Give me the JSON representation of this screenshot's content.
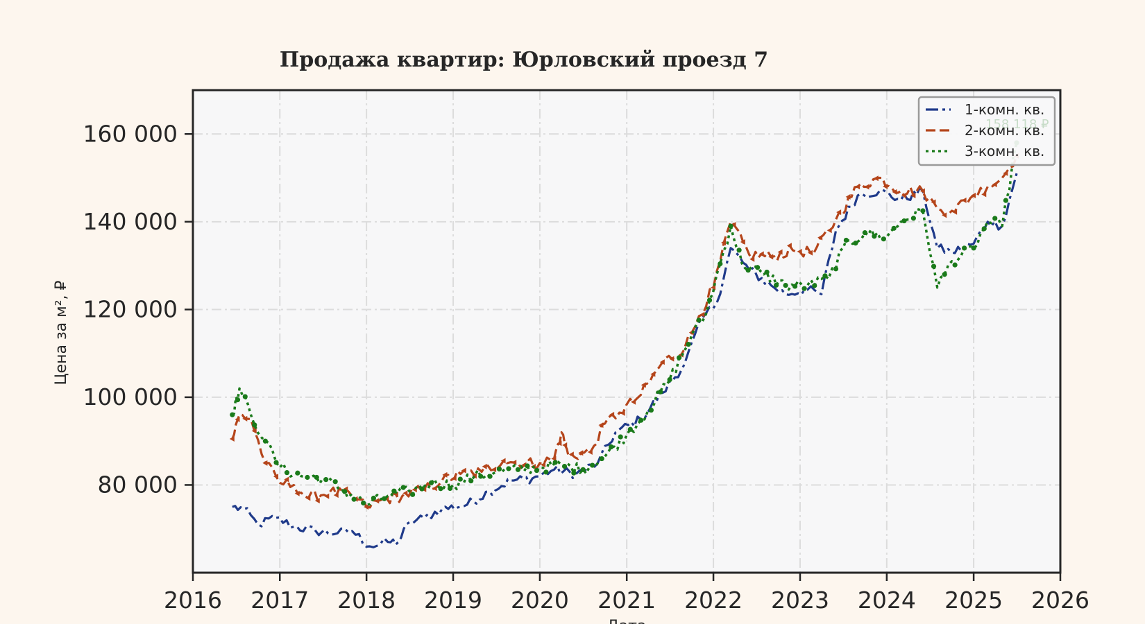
{
  "chart_data": {
    "type": "line",
    "title": "Продажа квартир: Юрловский проезд 7",
    "xlabel": "Дата",
    "ylabel": "Цена за м², ₽",
    "xlim": [
      "2016-01-01",
      "2026-01-01"
    ],
    "ylim": [
      60000,
      170000
    ],
    "x_ticks": [
      "2016",
      "2017",
      "2018",
      "2019",
      "2020",
      "2021",
      "2022",
      "2023",
      "2024",
      "2025",
      "2026"
    ],
    "y_ticks": [
      80000,
      100000,
      120000,
      140000,
      160000
    ],
    "y_tick_labels": [
      "80 000",
      "100 000",
      "120 000",
      "140 000",
      "160 000"
    ],
    "grid": true,
    "legend_position": "top-right",
    "end_labels": [
      "158 118 ₽"
    ],
    "series": [
      {
        "name": "1-комн. кв.",
        "color": "#1f3a8a",
        "style": "dashdot",
        "points": [
          [
            "2016-06-15",
            75000
          ],
          [
            "2016-08-01",
            74500
          ],
          [
            "2016-10-01",
            71000
          ],
          [
            "2016-12-15",
            72500
          ],
          [
            "2017-03-01",
            70500
          ],
          [
            "2017-06-01",
            69500
          ],
          [
            "2017-09-01",
            69000
          ],
          [
            "2017-11-01",
            69500
          ],
          [
            "2018-01-15",
            66000
          ],
          [
            "2018-04-01",
            67000
          ],
          [
            "2018-05-15",
            67000
          ],
          [
            "2018-07-01",
            71500
          ],
          [
            "2018-09-01",
            72500
          ],
          [
            "2018-11-15",
            74500
          ],
          [
            "2019-03-01",
            75500
          ],
          [
            "2019-06-01",
            78500
          ],
          [
            "2019-09-01",
            81000
          ],
          [
            "2019-12-01",
            81500
          ],
          [
            "2020-03-01",
            83500
          ],
          [
            "2020-06-01",
            82500
          ],
          [
            "2020-09-01",
            85000
          ],
          [
            "2020-11-15",
            92000
          ],
          [
            "2021-03-01",
            95000
          ],
          [
            "2021-06-01",
            101000
          ],
          [
            "2021-09-01",
            107500
          ],
          [
            "2021-11-15",
            118000
          ],
          [
            "2022-01-15",
            121500
          ],
          [
            "2022-03-15",
            134000
          ],
          [
            "2022-06-01",
            129000
          ],
          [
            "2022-09-01",
            125500
          ],
          [
            "2022-11-01",
            123500
          ],
          [
            "2023-02-01",
            124500
          ],
          [
            "2023-04-01",
            123500
          ],
          [
            "2023-06-01",
            138000
          ],
          [
            "2023-09-01",
            146000
          ],
          [
            "2023-12-01",
            147000
          ],
          [
            "2024-03-01",
            145000
          ],
          [
            "2024-06-01",
            147000
          ],
          [
            "2024-08-01",
            134000
          ],
          [
            "2024-10-01",
            133000
          ],
          [
            "2025-01-01",
            135000
          ],
          [
            "2025-03-01",
            140000
          ],
          [
            "2025-05-01",
            139000
          ],
          [
            "2025-07-01",
            151000
          ]
        ]
      },
      {
        "name": "2-комн. кв.",
        "color": "#b5451b",
        "style": "dashed",
        "points": [
          [
            "2016-06-15",
            90500
          ],
          [
            "2016-07-15",
            96000
          ],
          [
            "2016-09-01",
            95000
          ],
          [
            "2016-11-01",
            85000
          ],
          [
            "2017-01-01",
            80500
          ],
          [
            "2017-03-01",
            80000
          ],
          [
            "2017-05-01",
            77000
          ],
          [
            "2017-08-01",
            78500
          ],
          [
            "2017-11-01",
            77500
          ],
          [
            "2018-01-01",
            75000
          ],
          [
            "2018-03-01",
            76500
          ],
          [
            "2018-06-01",
            77500
          ],
          [
            "2018-09-01",
            79000
          ],
          [
            "2018-11-15",
            81000
          ],
          [
            "2019-02-01",
            82500
          ],
          [
            "2019-05-01",
            83000
          ],
          [
            "2019-08-01",
            85500
          ],
          [
            "2019-10-01",
            85000
          ],
          [
            "2020-01-01",
            85000
          ],
          [
            "2020-03-01",
            86000
          ],
          [
            "2020-04-01",
            92000
          ],
          [
            "2020-05-01",
            86500
          ],
          [
            "2020-08-01",
            87500
          ],
          [
            "2020-10-01",
            94000
          ],
          [
            "2020-12-01",
            96500
          ],
          [
            "2021-03-01",
            100500
          ],
          [
            "2021-06-01",
            108000
          ],
          [
            "2021-09-01",
            111000
          ],
          [
            "2021-11-01",
            118500
          ],
          [
            "2022-01-01",
            125000
          ],
          [
            "2022-03-15",
            140000
          ],
          [
            "2022-06-01",
            132500
          ],
          [
            "2022-09-01",
            132000
          ],
          [
            "2022-12-01",
            133500
          ],
          [
            "2023-03-01",
            133000
          ],
          [
            "2023-06-01",
            140500
          ],
          [
            "2023-09-01",
            148000
          ],
          [
            "2023-12-01",
            150000
          ],
          [
            "2024-03-01",
            147000
          ],
          [
            "2024-06-01",
            147000
          ],
          [
            "2024-08-01",
            143000
          ],
          [
            "2024-10-01",
            142500
          ],
          [
            "2025-01-01",
            146000
          ],
          [
            "2025-03-01",
            148000
          ],
          [
            "2025-05-01",
            150000
          ],
          [
            "2025-07-01",
            155000
          ]
        ]
      },
      {
        "name": "3-комн. кв.",
        "color": "#1a7a1a",
        "style": "dotted",
        "points": [
          [
            "2016-06-15",
            96000
          ],
          [
            "2016-07-15",
            102000
          ],
          [
            "2016-09-01",
            96000
          ],
          [
            "2016-11-01",
            90000
          ],
          [
            "2017-01-01",
            84000
          ],
          [
            "2017-04-01",
            82000
          ],
          [
            "2017-07-01",
            81500
          ],
          [
            "2017-10-01",
            78500
          ],
          [
            "2018-01-01",
            75500
          ],
          [
            "2018-04-01",
            77500
          ],
          [
            "2018-07-01",
            78500
          ],
          [
            "2018-10-01",
            80500
          ],
          [
            "2019-01-01",
            80000
          ],
          [
            "2019-04-01",
            82000
          ],
          [
            "2019-07-01",
            83000
          ],
          [
            "2019-10-01",
            83500
          ],
          [
            "2020-01-01",
            84000
          ],
          [
            "2020-04-01",
            84500
          ],
          [
            "2020-07-01",
            83500
          ],
          [
            "2020-10-01",
            86500
          ],
          [
            "2021-01-01",
            91500
          ],
          [
            "2021-04-01",
            97000
          ],
          [
            "2021-07-01",
            104000
          ],
          [
            "2021-10-01",
            114000
          ],
          [
            "2021-12-01",
            119000
          ],
          [
            "2022-03-15",
            139000
          ],
          [
            "2022-05-01",
            130500
          ],
          [
            "2022-08-01",
            128000
          ],
          [
            "2022-11-01",
            125500
          ],
          [
            "2023-02-01",
            125500
          ],
          [
            "2023-05-01",
            127000
          ],
          [
            "2023-07-01",
            134000
          ],
          [
            "2023-10-01",
            137500
          ],
          [
            "2024-01-01",
            136500
          ],
          [
            "2024-03-01",
            140000
          ],
          [
            "2024-06-01",
            142500
          ],
          [
            "2024-08-01",
            125000
          ],
          [
            "2024-10-01",
            131000
          ],
          [
            "2025-01-01",
            134000
          ],
          [
            "2025-03-01",
            140000
          ],
          [
            "2025-05-01",
            139000
          ],
          [
            "2025-07-01",
            158000
          ]
        ]
      }
    ]
  }
}
